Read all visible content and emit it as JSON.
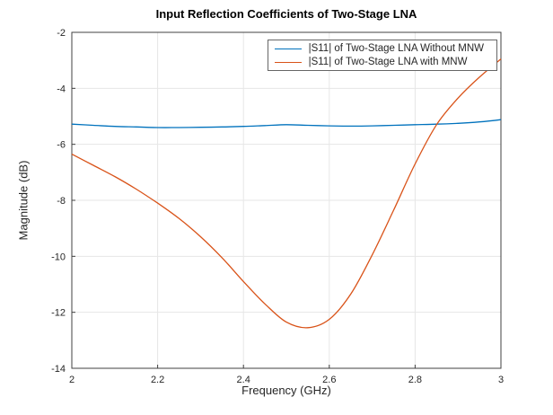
{
  "chart_data": {
    "type": "line",
    "title": "Input Reflection Coefficients of Two-Stage LNA",
    "xlabel": "Frequency (GHz)",
    "ylabel": "Magnitude (dB)",
    "xlim": [
      2,
      3
    ],
    "ylim": [
      -14,
      -2
    ],
    "xticks": [
      2,
      2.2,
      2.4,
      2.6,
      2.8,
      3
    ],
    "xtick_labels": [
      "2",
      "2.2",
      "2.4",
      "2.6",
      "2.8",
      "3"
    ],
    "yticks": [
      -14,
      -12,
      -10,
      -8,
      -6,
      -4,
      -2
    ],
    "ytick_labels": [
      "-14",
      "-12",
      "-10",
      "-8",
      "-6",
      "-4",
      "-2"
    ],
    "grid": true,
    "legend_position": "top-right",
    "x": [
      2,
      2.05,
      2.1,
      2.15,
      2.2,
      2.25,
      2.3,
      2.35,
      2.4,
      2.45,
      2.5,
      2.55,
      2.6,
      2.65,
      2.7,
      2.75,
      2.8,
      2.85,
      2.9,
      2.95,
      3
    ],
    "series": [
      {
        "name": "|S11| of Two-Stage LNA Without MNW",
        "color": "#0072BD",
        "values": [
          -5.28,
          -5.32,
          -5.36,
          -5.38,
          -5.4,
          -5.4,
          -5.39,
          -5.38,
          -5.36,
          -5.33,
          -5.3,
          -5.32,
          -5.34,
          -5.35,
          -5.34,
          -5.32,
          -5.3,
          -5.28,
          -5.25,
          -5.2,
          -5.12
        ]
      },
      {
        "name": "|S11| of Two-Stage LNA with MNW",
        "color": "#D95319",
        "values": [
          -6.35,
          -6.75,
          -7.15,
          -7.6,
          -8.1,
          -8.65,
          -9.3,
          -10.05,
          -10.9,
          -11.7,
          -12.35,
          -12.55,
          -12.25,
          -11.35,
          -9.95,
          -8.35,
          -6.7,
          -5.3,
          -4.35,
          -3.6,
          -2.95
        ]
      }
    ]
  }
}
